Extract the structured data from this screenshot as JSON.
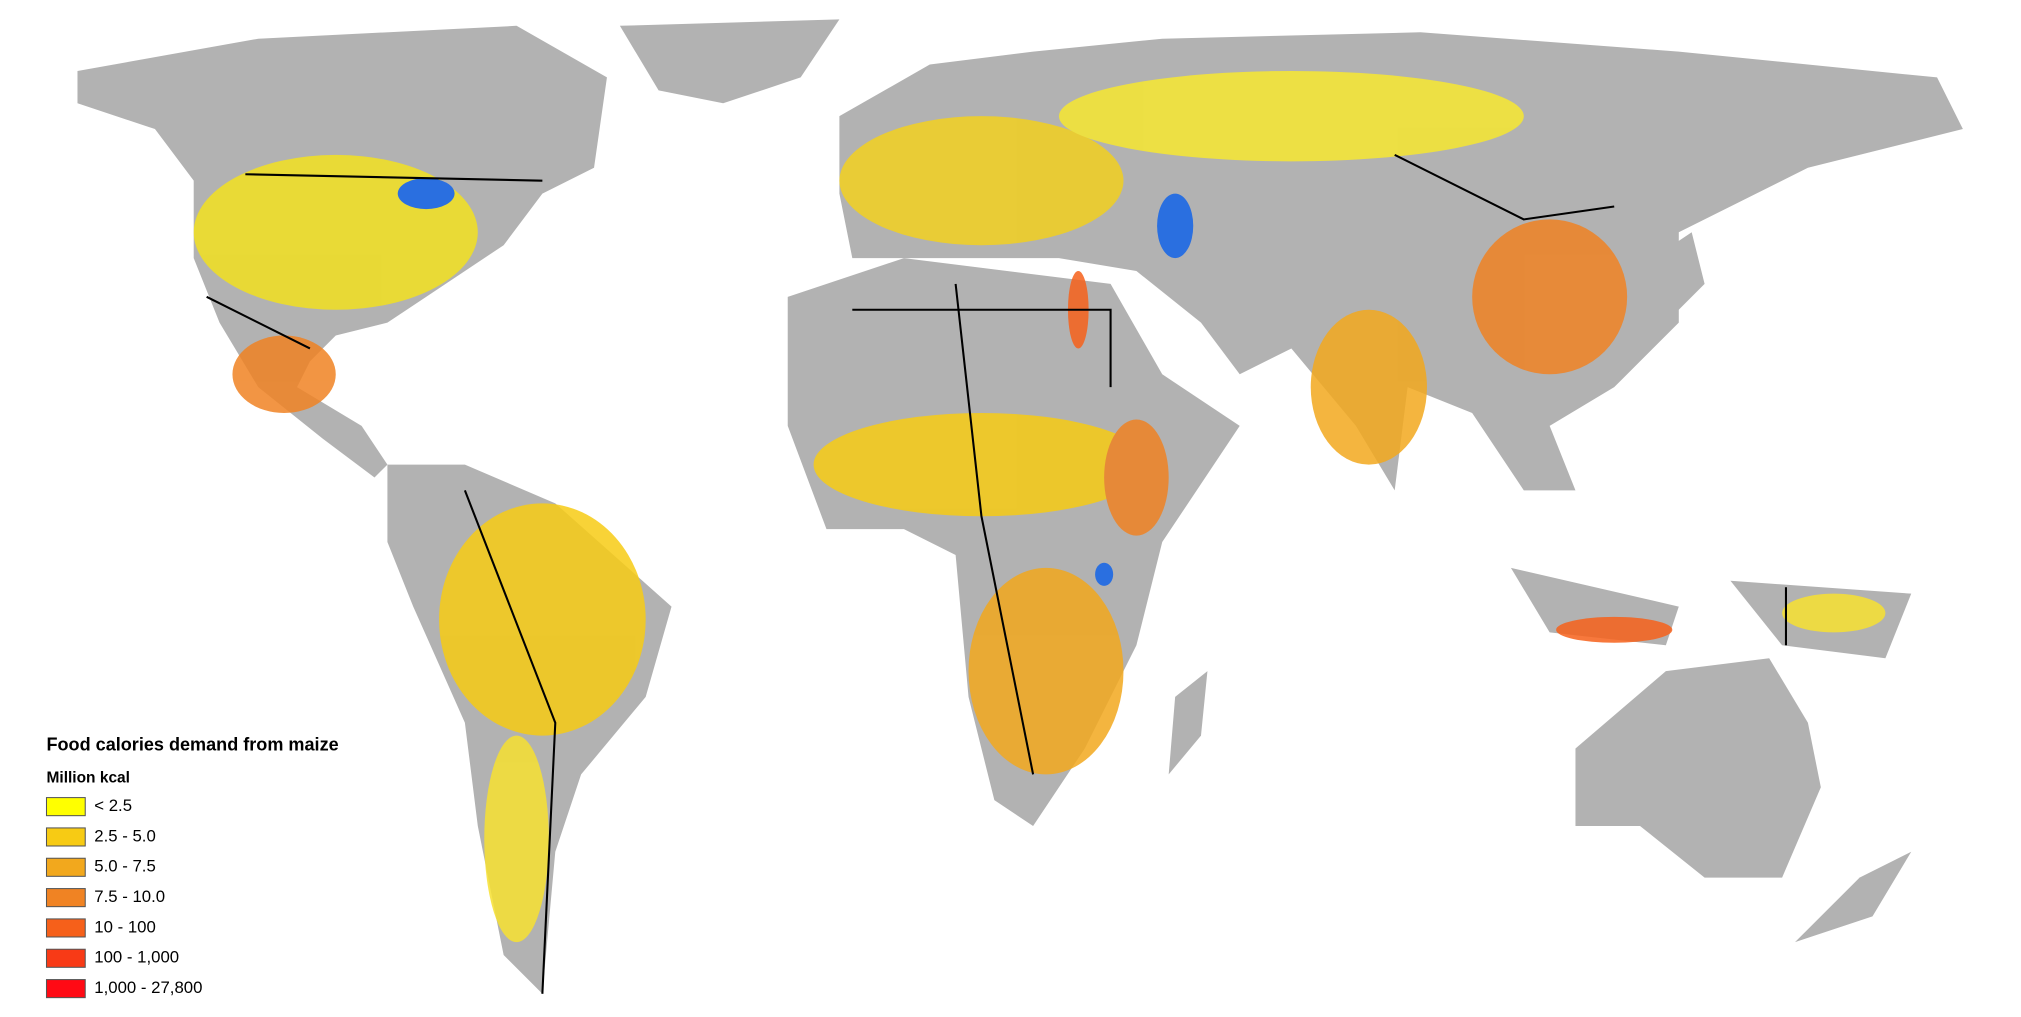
{
  "legend": {
    "title": "Food calories demand from maize",
    "subtitle": "Million kcal",
    "items": [
      {
        "label": "< 2.5",
        "color": "#ffff00"
      },
      {
        "label": "2.5 - 5.0",
        "color": "#f7cb14"
      },
      {
        "label": "5.0 - 7.5",
        "color": "#f2a81d"
      },
      {
        "label": "7.5 - 10.0",
        "color": "#f08323"
      },
      {
        "label": "10 - 100",
        "color": "#f6601a"
      },
      {
        "label": "100 - 1,000",
        "color": "#f83a16"
      },
      {
        "label": "1,000 - 27,800",
        "color": "#ff0a14"
      }
    ]
  }
}
